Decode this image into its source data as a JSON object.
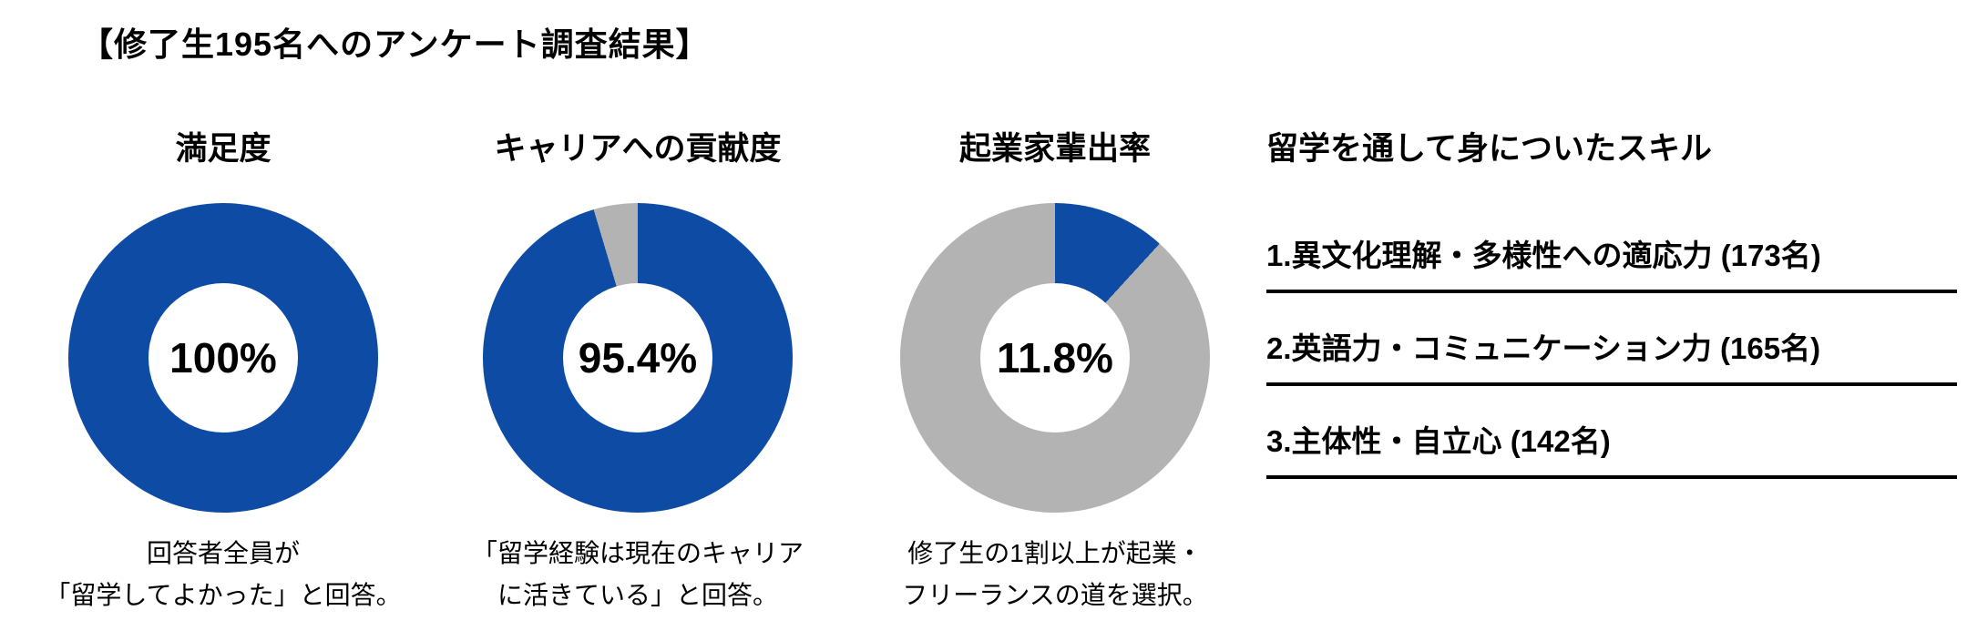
{
  "page_title": "【修了生195名へのアンケート調査結果】",
  "colors": {
    "accent_blue": "#0d4ba5",
    "neutral_gray": "#b3b3b3",
    "text": "#000000",
    "background": "#ffffff"
  },
  "chart_data": [
    {
      "type": "pie",
      "title": "満足度",
      "values": [
        100,
        0
      ],
      "value_percent": 100,
      "remainder_percent": 0,
      "center_label": "100%",
      "colors": [
        "#0d4ba5",
        "#b3b3b3"
      ],
      "caption_lines": [
        "回答者全員が",
        "「留学してよかった」と回答。"
      ],
      "caption": "回答者全員が「留学してよかった」と回答。"
    },
    {
      "type": "pie",
      "title": "キャリアへの貢献度",
      "values": [
        95.4,
        4.6
      ],
      "value_percent": 95.4,
      "remainder_percent": 4.6,
      "center_label": "95.4%",
      "colors": [
        "#0d4ba5",
        "#b3b3b3"
      ],
      "caption_lines": [
        "「留学経験は現在のキャリア",
        "に活きている」と回答。"
      ],
      "caption": "「留学経験は現在のキャリアに活きている」と回答。"
    },
    {
      "type": "pie",
      "title": "起業家輩出率",
      "values": [
        11.8,
        88.2
      ],
      "value_percent": 11.8,
      "remainder_percent": 88.2,
      "center_label": "11.8%",
      "colors": [
        "#0d4ba5",
        "#b3b3b3"
      ],
      "caption_lines": [
        "修了生の1割以上が起業・",
        "フリーランスの道を選択。"
      ],
      "caption": "修了生の1割以上が起業・フリーランスの道を選択。"
    }
  ],
  "skills": {
    "title": "留学を通して身についたスキル",
    "items": [
      {
        "rank": "1",
        "label": "1.異文化理解・多様性への適応力 (173名)",
        "count": 173
      },
      {
        "rank": "2",
        "label": "2.英語力・コミュニケーション力 (165名)",
        "count": 165
      },
      {
        "rank": "3",
        "label": "3.主体性・自立心 (142名)",
        "count": 142
      }
    ]
  }
}
